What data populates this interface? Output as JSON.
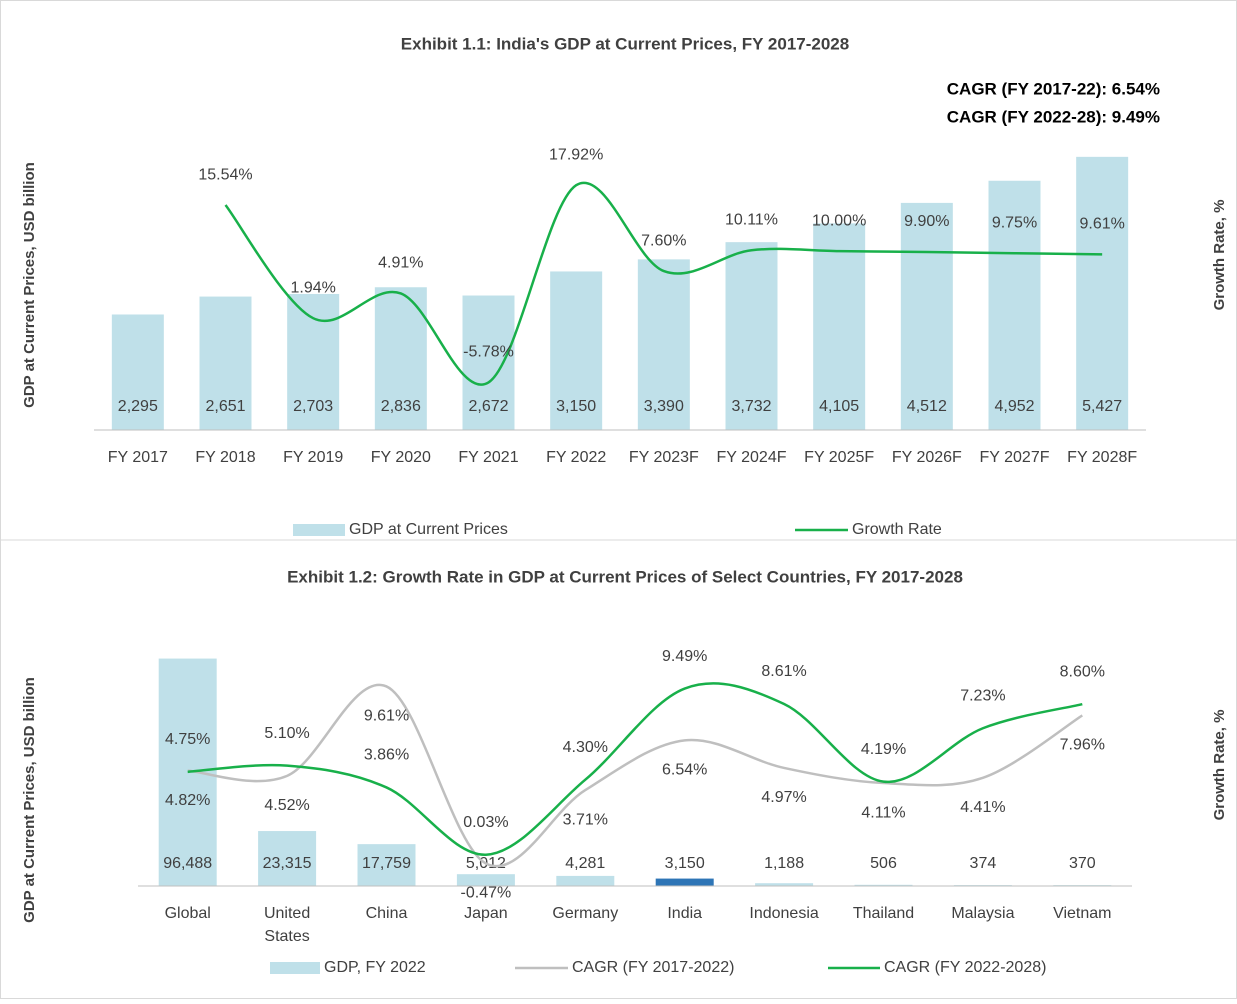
{
  "chart_data": [
    {
      "type": "bar",
      "title": "Exhibit 1.1: India's GDP at Current Prices, FY 2017-2028",
      "annotations": [
        "CAGR (FY 2017-22): 6.54%",
        "CAGR (FY 2022-28): 9.49%"
      ],
      "y_label": "GDP at Current Prices, USD billion",
      "y2_label": "Growth Rate, %",
      "categories": [
        "FY 2017",
        "FY 2018",
        "FY 2019",
        "FY 2020",
        "FY 2021",
        "FY 2022",
        "FY 2023F",
        "FY 2024F",
        "FY 2025F",
        "FY 2026F",
        "FY 2027F",
        "FY 2028F"
      ],
      "ylim": [
        0,
        6000
      ],
      "y2lim": [
        -11.5,
        24.8
      ],
      "series": [
        {
          "name": "GDP at Current Prices",
          "type": "bar",
          "color": "#bfe0e9",
          "values": [
            2295,
            2651,
            2703,
            2836,
            2672,
            3150,
            3390,
            3732,
            4105,
            4512,
            4952,
            5427
          ],
          "value_labels": [
            "2,295",
            "2,651",
            "2,703",
            "2,836",
            "2,672",
            "3,150",
            "3,390",
            "3,732",
            "4,105",
            "4,512",
            "4,952",
            "5,427"
          ]
        },
        {
          "name": "Growth Rate",
          "type": "line",
          "axis": "y2",
          "color": "#18b04a",
          "values": [
            null,
            15.54,
            1.94,
            4.91,
            -5.78,
            17.92,
            7.6,
            10.11,
            10.0,
            9.9,
            9.75,
            9.61
          ],
          "value_labels": [
            null,
            "15.54%",
            "1.94%",
            "4.91%",
            "-5.78%",
            "17.92%",
            "7.60%",
            "10.11%",
            "10.00%",
            "9.90%",
            "9.75%",
            "9.61%"
          ]
        }
      ]
    },
    {
      "type": "bar",
      "title": "Exhibit 1.2: Growth Rate in GDP at Current Prices of Select Countries, FY 2017-2028",
      "y_label": "GDP at Current Prices, USD billion",
      "y2_label": "Growth Rate, %",
      "categories": [
        "Global",
        "United States",
        "China",
        "Japan",
        "Germany",
        "India",
        "Indonesia",
        "Thailand",
        "Malaysia",
        "Vietnam"
      ],
      "ylim": [
        0,
        98000
      ],
      "y2lim": [
        -1.75,
        11.4
      ],
      "series": [
        {
          "name": "GDP, FY 2022",
          "type": "bar",
          "color": "#bfe0e9",
          "colors": [
            "#bfe0e9",
            "#bfe0e9",
            "#bfe0e9",
            "#bfe0e9",
            "#bfe0e9",
            "#2e75b6",
            "#bfe0e9",
            "#bfe0e9",
            "#bfe0e9",
            "#bfe0e9"
          ],
          "values": [
            96488,
            23315,
            17759,
            5012,
            4281,
            3150,
            1188,
            506,
            374,
            370
          ],
          "value_labels": [
            "96,488",
            "23,315",
            "17,759",
            "5,012",
            "4,281",
            "3,150",
            "1,188",
            "506",
            "374",
            "370"
          ]
        },
        {
          "name": "CAGR (FY 2017-2022)",
          "type": "line",
          "axis": "y2",
          "color": "#bfbfbf",
          "values": [
            4.82,
            4.52,
            9.61,
            -0.47,
            3.71,
            6.54,
            4.97,
            4.11,
            4.41,
            7.96
          ],
          "value_labels": [
            "4.82%",
            "4.52%",
            "9.61%",
            "-0.47%",
            "3.71%",
            "6.54%",
            "4.97%",
            "4.11%",
            "4.41%",
            "7.96%"
          ]
        },
        {
          "name": "CAGR (FY 2022-2028)",
          "type": "line",
          "axis": "y2",
          "color": "#18b04a",
          "values": [
            4.75,
            5.1,
            3.86,
            0.03,
            4.3,
            9.49,
            8.61,
            4.19,
            7.23,
            8.6
          ],
          "value_labels": [
            "4.75%",
            "5.10%",
            "3.86%",
            "0.03%",
            "4.30%",
            "9.49%",
            "8.61%",
            "4.19%",
            "7.23%",
            "8.60%"
          ]
        }
      ]
    }
  ]
}
